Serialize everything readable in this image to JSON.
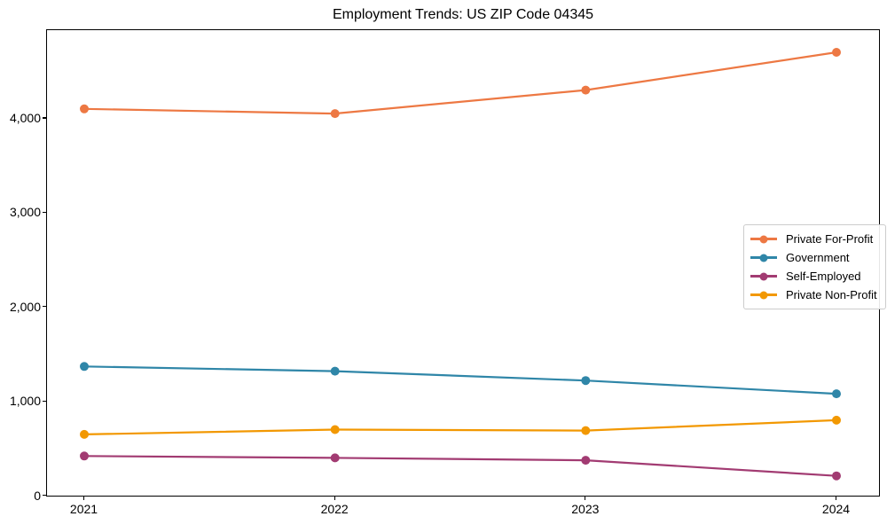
{
  "chart_data": {
    "type": "line",
    "title": "Employment Trends: US ZIP Code 04345",
    "categories": [
      "2021",
      "2022",
      "2023",
      "2024"
    ],
    "series": [
      {
        "name": "Private For-Profit",
        "color": "#ED7843",
        "values": [
          4100,
          4050,
          4300,
          4700
        ]
      },
      {
        "name": "Government",
        "color": "#2F86A8",
        "values": [
          1370,
          1320,
          1220,
          1080
        ]
      },
      {
        "name": "Self-Employed",
        "color": "#A23B72",
        "values": [
          420,
          400,
          375,
          210
        ]
      },
      {
        "name": "Private Non-Profit",
        "color": "#F29802",
        "values": [
          650,
          700,
          690,
          800
        ]
      }
    ],
    "xlabel": "",
    "ylabel": "",
    "ylim": [
      0,
      4935
    ],
    "yticks": [
      0,
      1000,
      2000,
      3000,
      4000
    ],
    "ytick_labels": [
      "0",
      "1,000",
      "2,000",
      "3,000",
      "4,000"
    ],
    "grid": false,
    "legend_position": "right",
    "background_color": "#ffffff",
    "axis_color": "#000000"
  }
}
